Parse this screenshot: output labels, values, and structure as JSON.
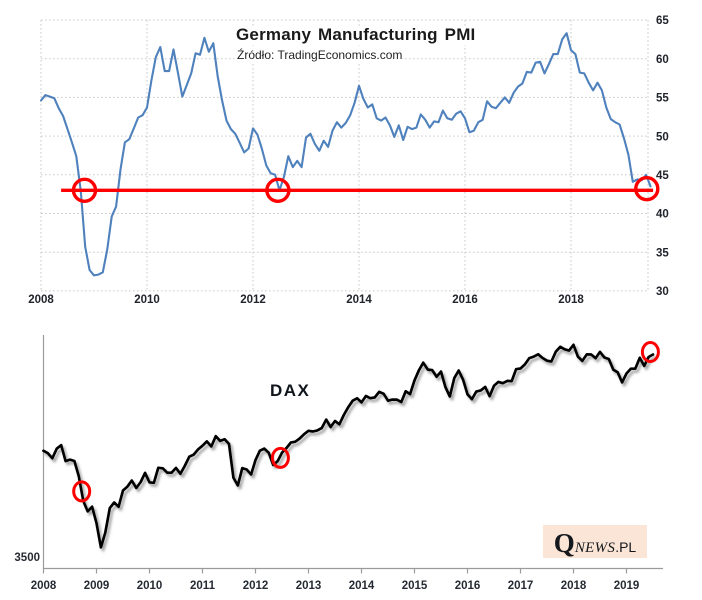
{
  "page": {
    "background": "#ffffff"
  },
  "chart_data": [
    {
      "id": "pmi",
      "type": "line",
      "title": "Germany Manufacturing PMI",
      "subtitle": "Źródło: TradingEconomics.com",
      "scale": "linear",
      "frequency": "monthly",
      "x_start_year": 2008,
      "xlim": [
        2008,
        2019.75
      ],
      "ylim": [
        30,
        65
      ],
      "y_axis_side": "right",
      "grid": "dotted",
      "line_color": "#4f81bd",
      "grid_color": "#c9c9c9",
      "label_color": "#21242c",
      "y_ticks": [
        65,
        60,
        55,
        50,
        45,
        40,
        35,
        30
      ],
      "x_ticks": [
        2008,
        2010,
        2012,
        2014,
        2016,
        2018
      ],
      "values": [
        54.6,
        55.3,
        55.1,
        54.9,
        53.6,
        52.6,
        50.9,
        49.2,
        47.4,
        42.9,
        35.7,
        32.7,
        32.0,
        32.1,
        32.4,
        35.4,
        39.6,
        40.9,
        45.7,
        49.2,
        49.6,
        51.0,
        52.4,
        52.7,
        53.7,
        57.2,
        60.2,
        61.5,
        58.4,
        58.4,
        61.2,
        58.2,
        55.1,
        56.6,
        58.1,
        60.7,
        60.5,
        62.7,
        60.9,
        62.0,
        57.7,
        54.6,
        52.0,
        50.9,
        50.3,
        49.1,
        47.9,
        48.4,
        51.0,
        50.2,
        48.4,
        46.2,
        45.2,
        45.0,
        43.0,
        44.7,
        47.4,
        46.0,
        46.8,
        46.0,
        49.8,
        50.3,
        49.0,
        48.1,
        49.4,
        48.6,
        50.7,
        51.8,
        51.1,
        51.7,
        52.7,
        54.3,
        56.5,
        54.8,
        53.7,
        54.1,
        52.3,
        52.0,
        52.4,
        51.4,
        49.9,
        51.4,
        49.5,
        51.2,
        50.9,
        51.1,
        52.8,
        52.1,
        51.1,
        51.9,
        51.8,
        53.3,
        52.3,
        52.1,
        52.9,
        53.2,
        52.3,
        50.5,
        50.7,
        51.8,
        52.1,
        54.5,
        53.8,
        53.6,
        54.3,
        55.0,
        54.3,
        55.6,
        56.4,
        56.8,
        58.3,
        58.2,
        59.5,
        59.6,
        58.1,
        59.3,
        60.6,
        60.6,
        62.5,
        63.3,
        61.1,
        60.6,
        58.2,
        58.1,
        56.9,
        55.9,
        56.9,
        55.9,
        53.7,
        52.2,
        51.8,
        51.5,
        49.7,
        47.6,
        44.1,
        44.4,
        44.3,
        45.0,
        43.5
      ],
      "annotations": {
        "color": "#fe0000",
        "hline": {
          "value": 43,
          "x_from": 2008.38,
          "x_to": 2019.55
        },
        "circles": [
          {
            "x": 2008.82,
            "value": 43
          },
          {
            "x": 2012.47,
            "value": 43
          },
          {
            "x": 2019.43,
            "value": 43.2
          }
        ]
      }
    },
    {
      "id": "dax",
      "type": "line",
      "title": "DAX",
      "scale": "log",
      "frequency": "monthly",
      "x_start_year": 2008,
      "xlim": [
        2008,
        2019.75
      ],
      "ylim": [
        3500,
        14500
      ],
      "grid": "none",
      "line_color": "#000000",
      "axis_color": "#9b9b9b",
      "label_color": "#262b33",
      "y_ticks": [
        3500
      ],
      "x_ticks": [
        2008,
        2009,
        2010,
        2011,
        2012,
        2013,
        2014,
        2015,
        2016,
        2017,
        2018,
        2019
      ],
      "values": [
        6851,
        6748,
        6535,
        6948,
        7097,
        6418,
        6480,
        6422,
        5831,
        4987,
        4669,
        4810,
        4338,
        3720,
        4085,
        4769,
        4941,
        4809,
        5332,
        5464,
        5675,
        5415,
        5626,
        5957,
        5609,
        5598,
        6154,
        6136,
        5964,
        5966,
        6148,
        5925,
        6229,
        6601,
        6688,
        6914,
        7077,
        7272,
        7041,
        7514,
        7294,
        7376,
        7159,
        5785,
        5502,
        6141,
        6088,
        5898,
        6459,
        6856,
        6947,
        6761,
        6264,
        6416,
        6772,
        6971,
        7216,
        7260,
        7405,
        7612,
        7776,
        7741,
        7795,
        7914,
        8349,
        7959,
        8276,
        8103,
        8594,
        9034,
        9405,
        9552,
        9306,
        9692,
        9556,
        9603,
        9943,
        9833,
        9407,
        9470,
        9474,
        9327,
        9981,
        9806,
        10694,
        11402,
        11966,
        11454,
        11414,
        10945,
        11309,
        10259,
        9660,
        10850,
        11382,
        10743,
        9798,
        9495,
        9966,
        10039,
        10263,
        9680,
        10337,
        10593,
        10511,
        10665,
        10640,
        11481,
        11535,
        11834,
        12313,
        12438,
        12615,
        12325,
        12118,
        12056,
        12829,
        13230,
        13024,
        12918,
        13400,
        12436,
        12097,
        12612,
        12604,
        12306,
        12806,
        12364,
        12247,
        11447,
        11257,
        10559,
        11173,
        11516,
        11526,
        12344,
        11727,
        12399,
        12600
      ],
      "annotations": {
        "color": "#fe0000",
        "circles": [
          {
            "x": 2008.72,
            "value": 5300
          },
          {
            "x": 2012.47,
            "value": 6550
          },
          {
            "x": 2019.45,
            "value": 12800
          }
        ]
      },
      "watermark": {
        "q": "Q",
        "news": "NEWS",
        "suffix": ".PL",
        "bg": "#fbe5d6"
      }
    }
  ]
}
